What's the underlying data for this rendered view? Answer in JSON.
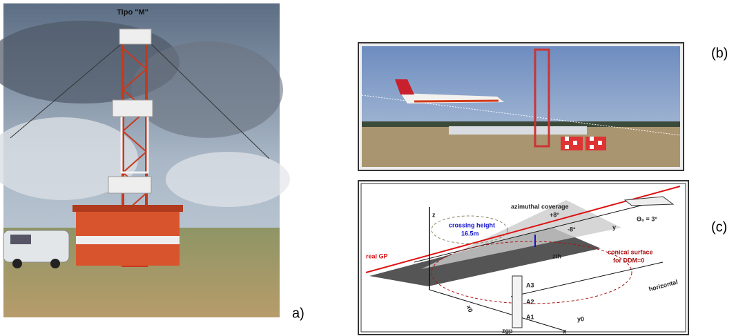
{
  "panels": {
    "a": {
      "label": "a)",
      "photo_caption": "Tipo \"M\""
    },
    "b": {
      "label": "(b)"
    },
    "c": {
      "label": "(c)",
      "diagram": {
        "z_axis": "z",
        "x_axis": "x",
        "y_axis": "y",
        "coverage": "azimuthal coverage",
        "plus_angle": "+8°",
        "minus_angle": "-8°",
        "crossing_title": "crossing height",
        "crossing_value": "16.5m",
        "glide_angle": "Θ₀ = 3°",
        "real_gp": "real GP",
        "conical_1": "conical surface",
        "conical_2": "for DDM=0",
        "zth": "zth",
        "a3": "A3",
        "a2": "A2",
        "a1": "A1",
        "x0": "x0",
        "y0": "y0",
        "zgp": "zgp",
        "horizontal": "horizontal"
      }
    }
  }
}
